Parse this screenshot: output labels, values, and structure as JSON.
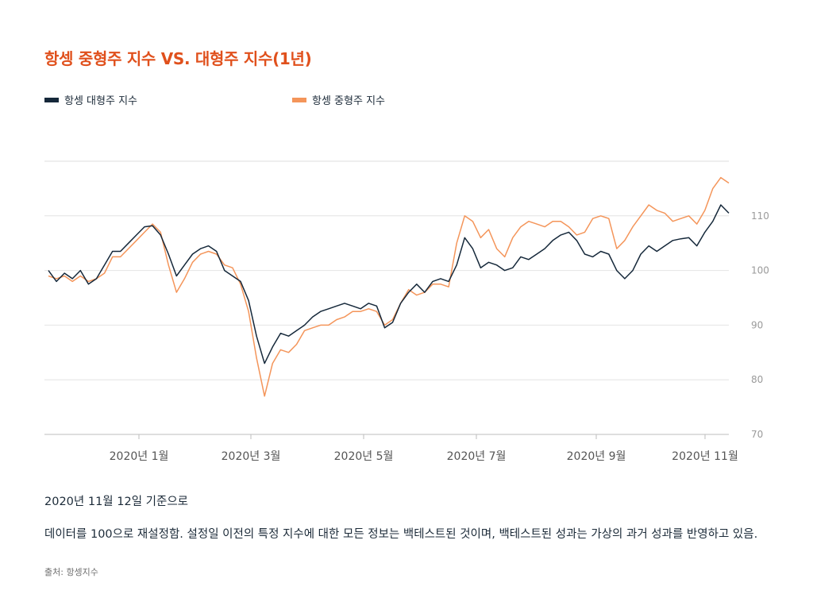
{
  "title": "항셍 중형주 지수 VS. 대형주 지수(1년)",
  "legend": [
    {
      "label": "항셍 대형주 지수",
      "color": "#15283a"
    },
    {
      "label": "항셍 중형주 지수",
      "color": "#f4955a"
    }
  ],
  "notes": {
    "as_of": "2020년 11월 12일 기준으로",
    "rebased": "데이터를 100으로 재설정함. 설정일 이전의 특정 지수에 대한 모든 정보는 백테스트된 것이며, 백테스트된 성과는 가상의 과거 성과를 반영하고 있음.",
    "source": "출처: 항셍지수"
  },
  "chart_data": {
    "type": "line",
    "ylim": [
      70,
      120
    ],
    "y_ticks": [
      70,
      80,
      90,
      100,
      110
    ],
    "x_ticks": [
      "2020년 1월",
      "2020년 3월",
      "2020년 5월",
      "2020년 7월",
      "2020년 9월",
      "2020년 11월"
    ],
    "grid": true,
    "legend_position": "top",
    "series": [
      {
        "name": "항셍 대형주 지수",
        "color": "#15283a",
        "values": [
          100,
          98,
          99.5,
          98.5,
          100,
          97.5,
          98.5,
          101,
          103.5,
          103.5,
          105,
          106.5,
          108,
          108.2,
          106.5,
          103,
          99,
          101,
          103,
          104,
          104.5,
          103.5,
          100,
          99,
          98,
          94.5,
          88,
          83,
          86,
          88.5,
          88,
          89,
          90,
          91.5,
          92.5,
          93,
          93.5,
          94,
          93.5,
          93,
          94,
          93.5,
          89.5,
          90.5,
          94,
          96,
          97.5,
          96,
          98,
          98.5,
          98,
          101,
          106,
          104,
          100.5,
          101.5,
          101,
          100,
          100.5,
          102.5,
          102,
          103,
          104,
          105.5,
          106.5,
          107,
          105.5,
          103,
          102.5,
          103.5,
          103,
          100,
          98.5,
          100,
          103,
          104.5,
          103.5,
          104.5,
          105.5,
          105.8,
          106,
          104.5,
          107,
          109,
          112,
          110.5
        ]
      },
      {
        "name": "항셍 중형주 지수",
        "color": "#f4955a",
        "values": [
          99,
          98.5,
          99,
          98,
          99,
          98,
          98.5,
          99.5,
          102.5,
          102.5,
          104,
          105.5,
          107,
          108.5,
          107,
          101,
          96,
          98.5,
          101.5,
          103,
          103.5,
          103,
          101,
          100.5,
          97.5,
          92.5,
          84,
          77,
          83,
          85.5,
          85,
          86.5,
          89,
          89.5,
          90,
          90,
          91,
          91.5,
          92.5,
          92.5,
          93,
          92.5,
          90,
          91,
          94,
          96.5,
          95.5,
          96,
          97.5,
          97.5,
          97,
          105,
          110,
          109,
          106,
          107.5,
          104,
          102.5,
          106,
          108,
          109,
          108.5,
          108,
          109,
          109,
          108,
          106.5,
          107,
          109.5,
          110,
          109.5,
          104,
          105.5,
          108,
          110,
          112,
          111,
          110.5,
          109,
          109.5,
          110,
          108.5,
          111,
          115,
          117,
          116
        ]
      }
    ]
  }
}
